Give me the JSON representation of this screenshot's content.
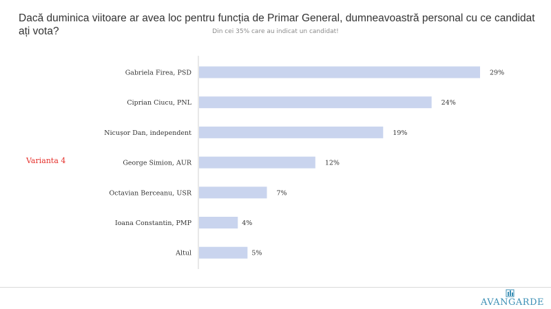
{
  "header": {
    "title": "Dacă duminica viitoare ar avea loc pentru funcția de Primar General, dumneavoastră personal cu ce candidat ați vota?",
    "subtitle": "Din cei 35% care au indicat un candidat!"
  },
  "variant_label": "Varianta 4",
  "brand": {
    "name": "AVANGARDE",
    "color": "#3b8fb5",
    "mark_icon": "avangarde-logo-icon"
  },
  "colors": {
    "bar": "#c9d4ee",
    "axis": "#d0d0d0",
    "label": "#333333"
  },
  "chart_data": {
    "type": "bar",
    "orientation": "horizontal",
    "categories": [
      "Gabriela Firea, PSD",
      "Ciprian Ciucu, PNL",
      "Nicușor Dan, independent",
      "George Simion, AUR",
      "Octavian Berceanu, USR",
      "Ioana Constantin, PMP",
      "Altul"
    ],
    "values": [
      29,
      24,
      19,
      12,
      7,
      4,
      5
    ],
    "data_labels": [
      "29%",
      "24%",
      "19%",
      "12%",
      "7%",
      "4%",
      "5%"
    ],
    "xlim": [
      0,
      35
    ],
    "grid": false,
    "title": "Dacă duminica viitoare ar avea loc pentru funcția de Primar General, dumneavoastră personal cu ce candidat ați vota?",
    "subtitle": "Din cei 35% care au indicat un candidat!"
  }
}
